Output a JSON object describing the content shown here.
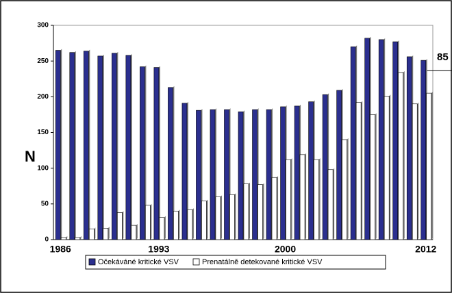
{
  "chart_data": {
    "type": "bar",
    "ylabel": "N",
    "annotation": "85",
    "categories": [
      "1986",
      null,
      null,
      null,
      null,
      null,
      null,
      "1993",
      null,
      null,
      null,
      null,
      null,
      null,
      null,
      null,
      "2000",
      null,
      null,
      null,
      null,
      null,
      null,
      null,
      null,
      null,
      "2012"
    ],
    "series": [
      {
        "name": "Očekáváné kritické VSV",
        "color": "#2b2f8f",
        "values": [
          265,
          262,
          264,
          257,
          261,
          258,
          242,
          241,
          213,
          191,
          181,
          182,
          182,
          179,
          182,
          182,
          186,
          187,
          193,
          203,
          209,
          270,
          282,
          280,
          277,
          256,
          251
        ]
      },
      {
        "name": "Prenatálně detekované kritické VSV",
        "color": "#ffffff",
        "values": [
          3,
          3,
          15,
          16,
          38,
          20,
          48,
          31,
          40,
          42,
          54,
          60,
          63,
          78,
          77,
          87,
          112,
          119,
          112,
          98,
          140,
          192,
          175,
          201,
          234,
          190,
          205
        ]
      }
    ],
    "ylim": [
      0,
      300
    ],
    "yticks": [
      0,
      50,
      100,
      150,
      200,
      250,
      300
    ],
    "grid": false
  }
}
